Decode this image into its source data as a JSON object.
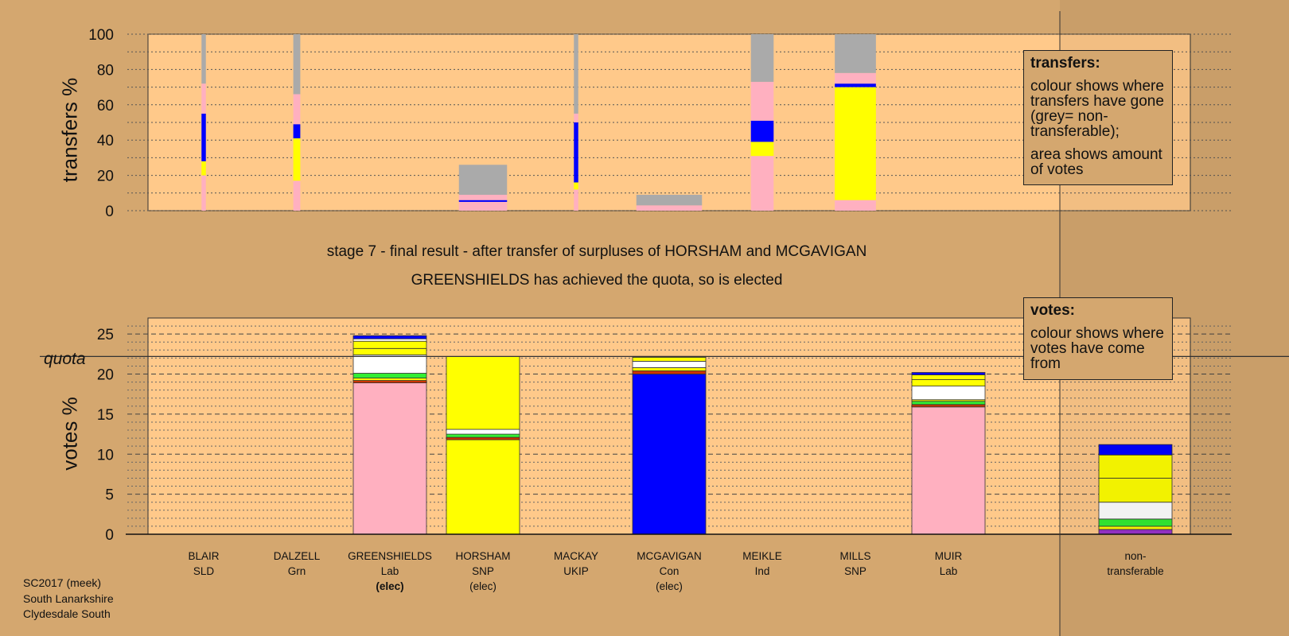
{
  "titles": {
    "stage": "stage 7 - final result - after transfer of surpluses of HORSHAM and MCGAVIGAN",
    "status": "GREENSHIELDS has achieved the quota, so is elected"
  },
  "axes": {
    "transfers_label": "transfers %",
    "votes_label": "votes %",
    "quota_label": "quota"
  },
  "legend_transfers": {
    "title": "transfers:",
    "text1": "colour shows where transfers have gone (grey= non-transferable);",
    "text2": "area shows amount of votes"
  },
  "legend_votes": {
    "title": "votes:",
    "text": "colour shows where votes have come from"
  },
  "footer": {
    "line1": "SC2017 (meek)",
    "line2": "South Lanarkshire",
    "line3": "Clydesdale South"
  },
  "candidates": [
    {
      "name": "BLAIR",
      "party": "SLD",
      "status": ""
    },
    {
      "name": "DALZELL",
      "party": "Grn",
      "status": ""
    },
    {
      "name": "GREENSHIELDS",
      "party": "Lab",
      "status": "(elec)"
    },
    {
      "name": "HORSHAM",
      "party": "SNP",
      "status": "(elec)"
    },
    {
      "name": "MACKAY",
      "party": "UKIP",
      "status": ""
    },
    {
      "name": "MCGAVIGAN",
      "party": "Con",
      "status": "(elec)"
    },
    {
      "name": "MEIKLE",
      "party": "Ind",
      "status": ""
    },
    {
      "name": "MILLS",
      "party": "SNP",
      "status": ""
    },
    {
      "name": "MUIR",
      "party": "Lab",
      "status": ""
    },
    {
      "name": "non-\ntransferable",
      "party": "",
      "status": ""
    }
  ],
  "colors": {
    "background": "#D4A76F",
    "plot_bg": "#FFC98A",
    "Lab": "#FFB0C0",
    "SNP": "#FFFF00",
    "Con": "#0000FF",
    "Grn": "#33EE33",
    "SLD": "#FFFFFF",
    "UKIP": "#9933CC",
    "Ind": "#FFFFFF",
    "other": "#CC3300",
    "nontransferable": "#AAAAAA"
  },
  "chart_data": [
    {
      "type": "bar",
      "title": "",
      "ylabel": "transfers %",
      "ylim": [
        0,
        100
      ],
      "categories": [
        "BLAIR",
        "DALZELL",
        "GREENSHIELDS",
        "HORSHAM",
        "MACKAY",
        "MCGAVIGAN",
        "MEIKLE",
        "MILLS",
        "MUIR",
        "non-transferable"
      ],
      "bar_width_share": [
        0.05,
        0.08,
        0,
        0.55,
        0.05,
        0.75,
        0.26,
        0.47,
        0,
        0
      ],
      "stacks": [
        [
          {
            "party": "Lab",
            "value": 20
          },
          {
            "party": "SNP",
            "value": 8
          },
          {
            "party": "Con",
            "value": 27
          },
          {
            "party": "Lab",
            "value": 17
          },
          {
            "party": "nontransferable",
            "value": 28
          }
        ],
        [
          {
            "party": "Lab",
            "value": 17
          },
          {
            "party": "SNP",
            "value": 24
          },
          {
            "party": "Con",
            "value": 8
          },
          {
            "party": "Lab",
            "value": 17
          },
          {
            "party": "nontransferable",
            "value": 34
          }
        ],
        [],
        [
          {
            "party": "Lab",
            "value": 5
          },
          {
            "party": "Con",
            "value": 1
          },
          {
            "party": "Lab",
            "value": 3
          },
          {
            "party": "nontransferable",
            "value": 17
          }
        ],
        [
          {
            "party": "Lab",
            "value": 12
          },
          {
            "party": "SNP",
            "value": 4
          },
          {
            "party": "Con",
            "value": 34
          },
          {
            "party": "Lab",
            "value": 5
          },
          {
            "party": "nontransferable",
            "value": 45
          }
        ],
        [
          {
            "party": "Lab",
            "value": 3
          },
          {
            "party": "nontransferable",
            "value": 6
          }
        ],
        [
          {
            "party": "Lab",
            "value": 31
          },
          {
            "party": "SNP",
            "value": 8
          },
          {
            "party": "Con",
            "value": 12
          },
          {
            "party": "Lab",
            "value": 22
          },
          {
            "party": "nontransferable",
            "value": 27
          }
        ],
        [
          {
            "party": "Lab",
            "value": 6
          },
          {
            "party": "SNP",
            "value": 64
          },
          {
            "party": "Con",
            "value": 2
          },
          {
            "party": "Lab",
            "value": 6
          },
          {
            "party": "nontransferable",
            "value": 22
          }
        ],
        [],
        []
      ]
    },
    {
      "type": "bar",
      "title": "",
      "ylabel": "votes %",
      "ylim": [
        0,
        27
      ],
      "quota": 22.2,
      "categories": [
        "BLAIR",
        "DALZELL",
        "GREENSHIELDS",
        "HORSHAM",
        "MACKAY",
        "MCGAVIGAN",
        "MEIKLE",
        "MILLS",
        "MUIR",
        "non-transferable"
      ],
      "stacks": [
        [],
        [],
        [
          {
            "party": "Lab",
            "value": 18.9
          },
          {
            "party": "other",
            "value": 0.3
          },
          {
            "party": "SNP",
            "value": 0.3
          },
          {
            "party": "Grn",
            "value": 0.6
          },
          {
            "party": "SLD",
            "value": 2.3
          },
          {
            "party": "SNP",
            "value": 0.8
          },
          {
            "party": "SNP",
            "value": 0.9
          },
          {
            "party": "Ind",
            "value": 0.3
          },
          {
            "party": "Con",
            "value": 0.4
          }
        ],
        [
          {
            "party": "SNP",
            "value": 11.8
          },
          {
            "party": "other",
            "value": 0.3
          },
          {
            "party": "Grn",
            "value": 0.4
          },
          {
            "party": "SLD",
            "value": 0.6
          },
          {
            "party": "SNP",
            "value": 9.1
          }
        ],
        [],
        [
          {
            "party": "Con",
            "value": 20.0
          },
          {
            "party": "other",
            "value": 0.4
          },
          {
            "party": "SNP",
            "value": 0.4
          },
          {
            "party": "SLD",
            "value": 0.8
          },
          {
            "party": "SNP",
            "value": 0.5
          },
          {
            "party": "Ind",
            "value": 0.1
          }
        ],
        [],
        [],
        [
          {
            "party": "Lab",
            "value": 15.9
          },
          {
            "party": "other",
            "value": 0.3
          },
          {
            "party": "Grn",
            "value": 0.4
          },
          {
            "party": "SNP",
            "value": 0.2
          },
          {
            "party": "SLD",
            "value": 1.7
          },
          {
            "party": "SNP",
            "value": 0.8
          },
          {
            "party": "SNP",
            "value": 0.6
          },
          {
            "party": "Con",
            "value": 0.3
          }
        ],
        [
          {
            "party": "UKIP",
            "value": 0.6
          },
          {
            "party": "SNP",
            "value": 0.4
          },
          {
            "party": "Grn",
            "value": 0.9
          },
          {
            "party": "SLD",
            "value": 2.1
          },
          {
            "party": "SNP",
            "value": 3.0
          },
          {
            "party": "SNP",
            "value": 2.9
          },
          {
            "party": "Con",
            "value": 1.3
          }
        ]
      ]
    }
  ]
}
